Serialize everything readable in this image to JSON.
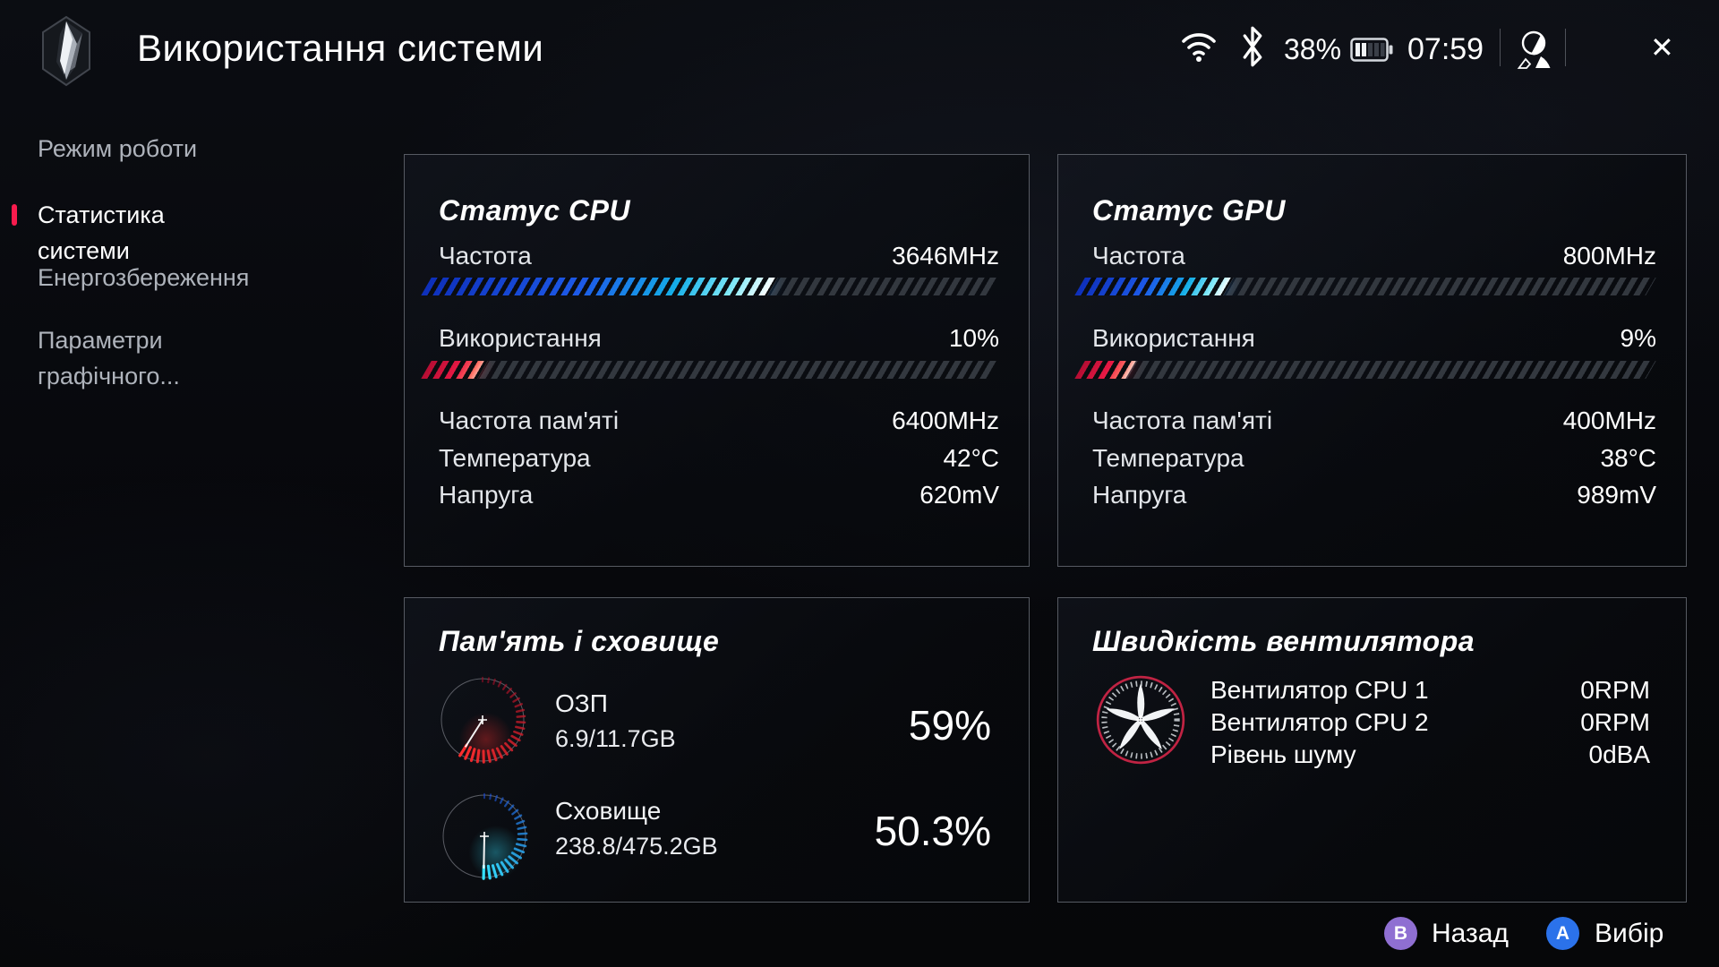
{
  "topbar": {
    "title": "Використання системи",
    "battery_percent": "38%",
    "time": "07:59",
    "close_glyph": "✕"
  },
  "sidebar": {
    "items": [
      {
        "label": "Режим роботи",
        "active": false
      },
      {
        "label": "Статистика системи",
        "active": true
      },
      {
        "label": "Енергозбереження",
        "active": false
      },
      {
        "label": "Параметри графічного...",
        "active": false
      }
    ],
    "accent_color": "#f81b4d"
  },
  "cpu_card": {
    "title": "Статус CPU",
    "freq_label": "Частота",
    "freq_value": "3646MHz",
    "freq_percent": 61,
    "usage_label": "Використання",
    "usage_value": "10%",
    "usage_percent": 10,
    "mem_freq_label": "Частота пам'яті",
    "mem_freq_value": "6400MHz",
    "temp_label": "Температура",
    "temp_value": "42°C",
    "volt_label": "Напруга",
    "volt_value": "620mV"
  },
  "gpu_card": {
    "title": "Статус GPU",
    "freq_label": "Частота",
    "freq_value": "800MHz",
    "freq_percent": 26,
    "usage_label": "Використання",
    "usage_value": "9%",
    "usage_percent": 9,
    "mem_freq_label": "Частота пам'яті",
    "mem_freq_value": "400MHz",
    "temp_label": "Температура",
    "temp_value": "38°C",
    "volt_label": "Напруга",
    "volt_value": "989mV"
  },
  "memory_card": {
    "title": "Пам'ять і сховище",
    "ram_label": "ОЗП",
    "ram_value": "6.9/11.7GB",
    "ram_percent": 59,
    "ram_percent_display": "59%",
    "ram_color_start": "#a50d28",
    "ram_color_end": "#ff2e2e",
    "storage_label": "Сховище",
    "storage_value": "238.8/475.2GB",
    "storage_percent": 50.3,
    "storage_percent_display": "50.3%",
    "storage_color_start": "#1b50e8",
    "storage_color_end": "#35e2ff"
  },
  "fan_card": {
    "title": "Швидкість вентилятора",
    "rows": [
      {
        "label": "Вентилятор CPU 1",
        "value": "0RPM"
      },
      {
        "label": "Вентилятор CPU 2",
        "value": "0RPM"
      },
      {
        "label": "Рівень шуму",
        "value": "0dBA"
      }
    ]
  },
  "footer": {
    "back_button_glyph": "B",
    "back_label": "Назад",
    "select_button_glyph": "A",
    "select_label": "Вибір"
  }
}
